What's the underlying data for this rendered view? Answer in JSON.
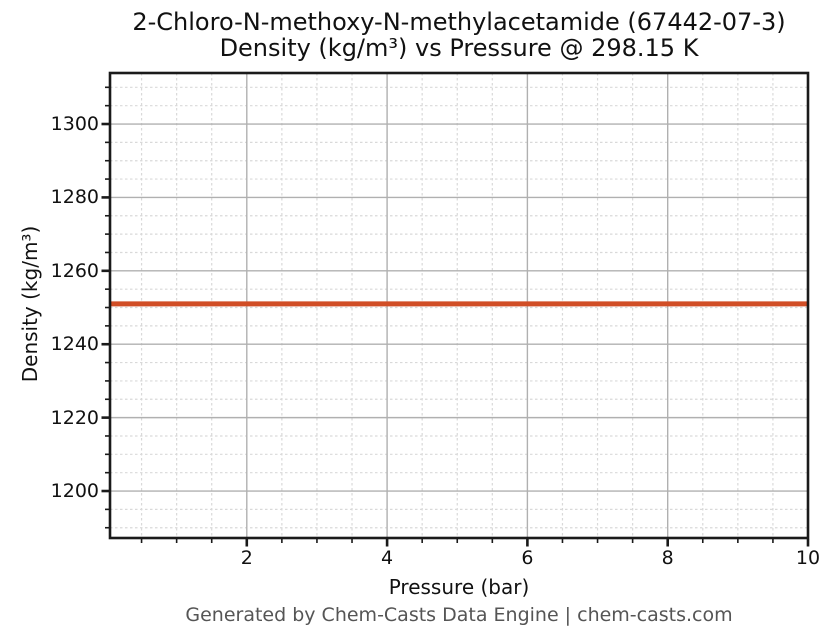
{
  "header": {
    "title_line1": "2-Chloro-N-methoxy-N-methylacetamide (67442-07-3)",
    "title_line2": "Density (kg/m³) vs Pressure @ 298.15 K"
  },
  "footer": {
    "text": "Generated by Chem-Casts Data Engine | chem-casts.com"
  },
  "chart_data": {
    "type": "line",
    "title": "2-Chloro-N-methoxy-N-methylacetamide (67442-07-3) Density (kg/m³) vs Pressure @ 298.15 K",
    "xlabel": "Pressure (bar)",
    "ylabel": "Density (kg/m³)",
    "xlim": [
      0.05,
      10
    ],
    "ylim": [
      1187.2,
      1313.9
    ],
    "x_major_ticks": [
      2,
      4,
      6,
      8,
      10
    ],
    "x_minor_step": 0.5,
    "y_major_ticks": [
      1200,
      1220,
      1240,
      1260,
      1280,
      1300
    ],
    "y_minor_step": 5,
    "grid": {
      "major_on": true,
      "minor_on": true
    },
    "legend_position": "none",
    "series": [
      {
        "name": "Density",
        "x": [
          0.05,
          10
        ],
        "y": [
          1251.0,
          1251.0
        ],
        "constant_value": 1251.0
      }
    ]
  },
  "colors": {
    "series_line": "#d14e26",
    "spine": "#1a1a1a",
    "tick": "#1a1a1a",
    "major_grid": "#b0b0b0",
    "minor_grid": "#d9d9d9",
    "title_text": "#111111",
    "footer_text": "#555555",
    "background": "#ffffff"
  }
}
